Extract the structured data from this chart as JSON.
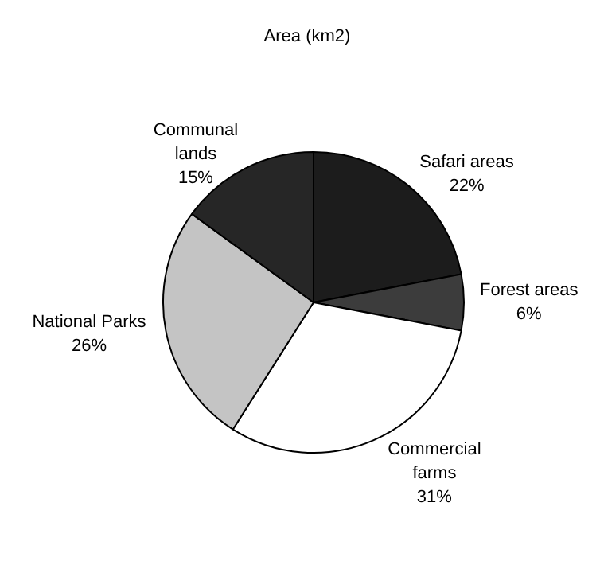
{
  "chart_data": {
    "type": "pie",
    "title": "Area (km2)",
    "categories": [
      "Safari areas",
      "Forest areas",
      "Commercial farms",
      "National Parks",
      "Communal lands"
    ],
    "values": [
      22,
      6,
      31,
      26,
      15
    ],
    "value_labels": [
      "22%",
      "6%",
      "31%",
      "26%",
      "15%"
    ],
    "colors": [
      "#1c1c1c",
      "#3c3c3c",
      "#ffffff",
      "#c4c4c4",
      "#262626"
    ],
    "legend": false
  }
}
